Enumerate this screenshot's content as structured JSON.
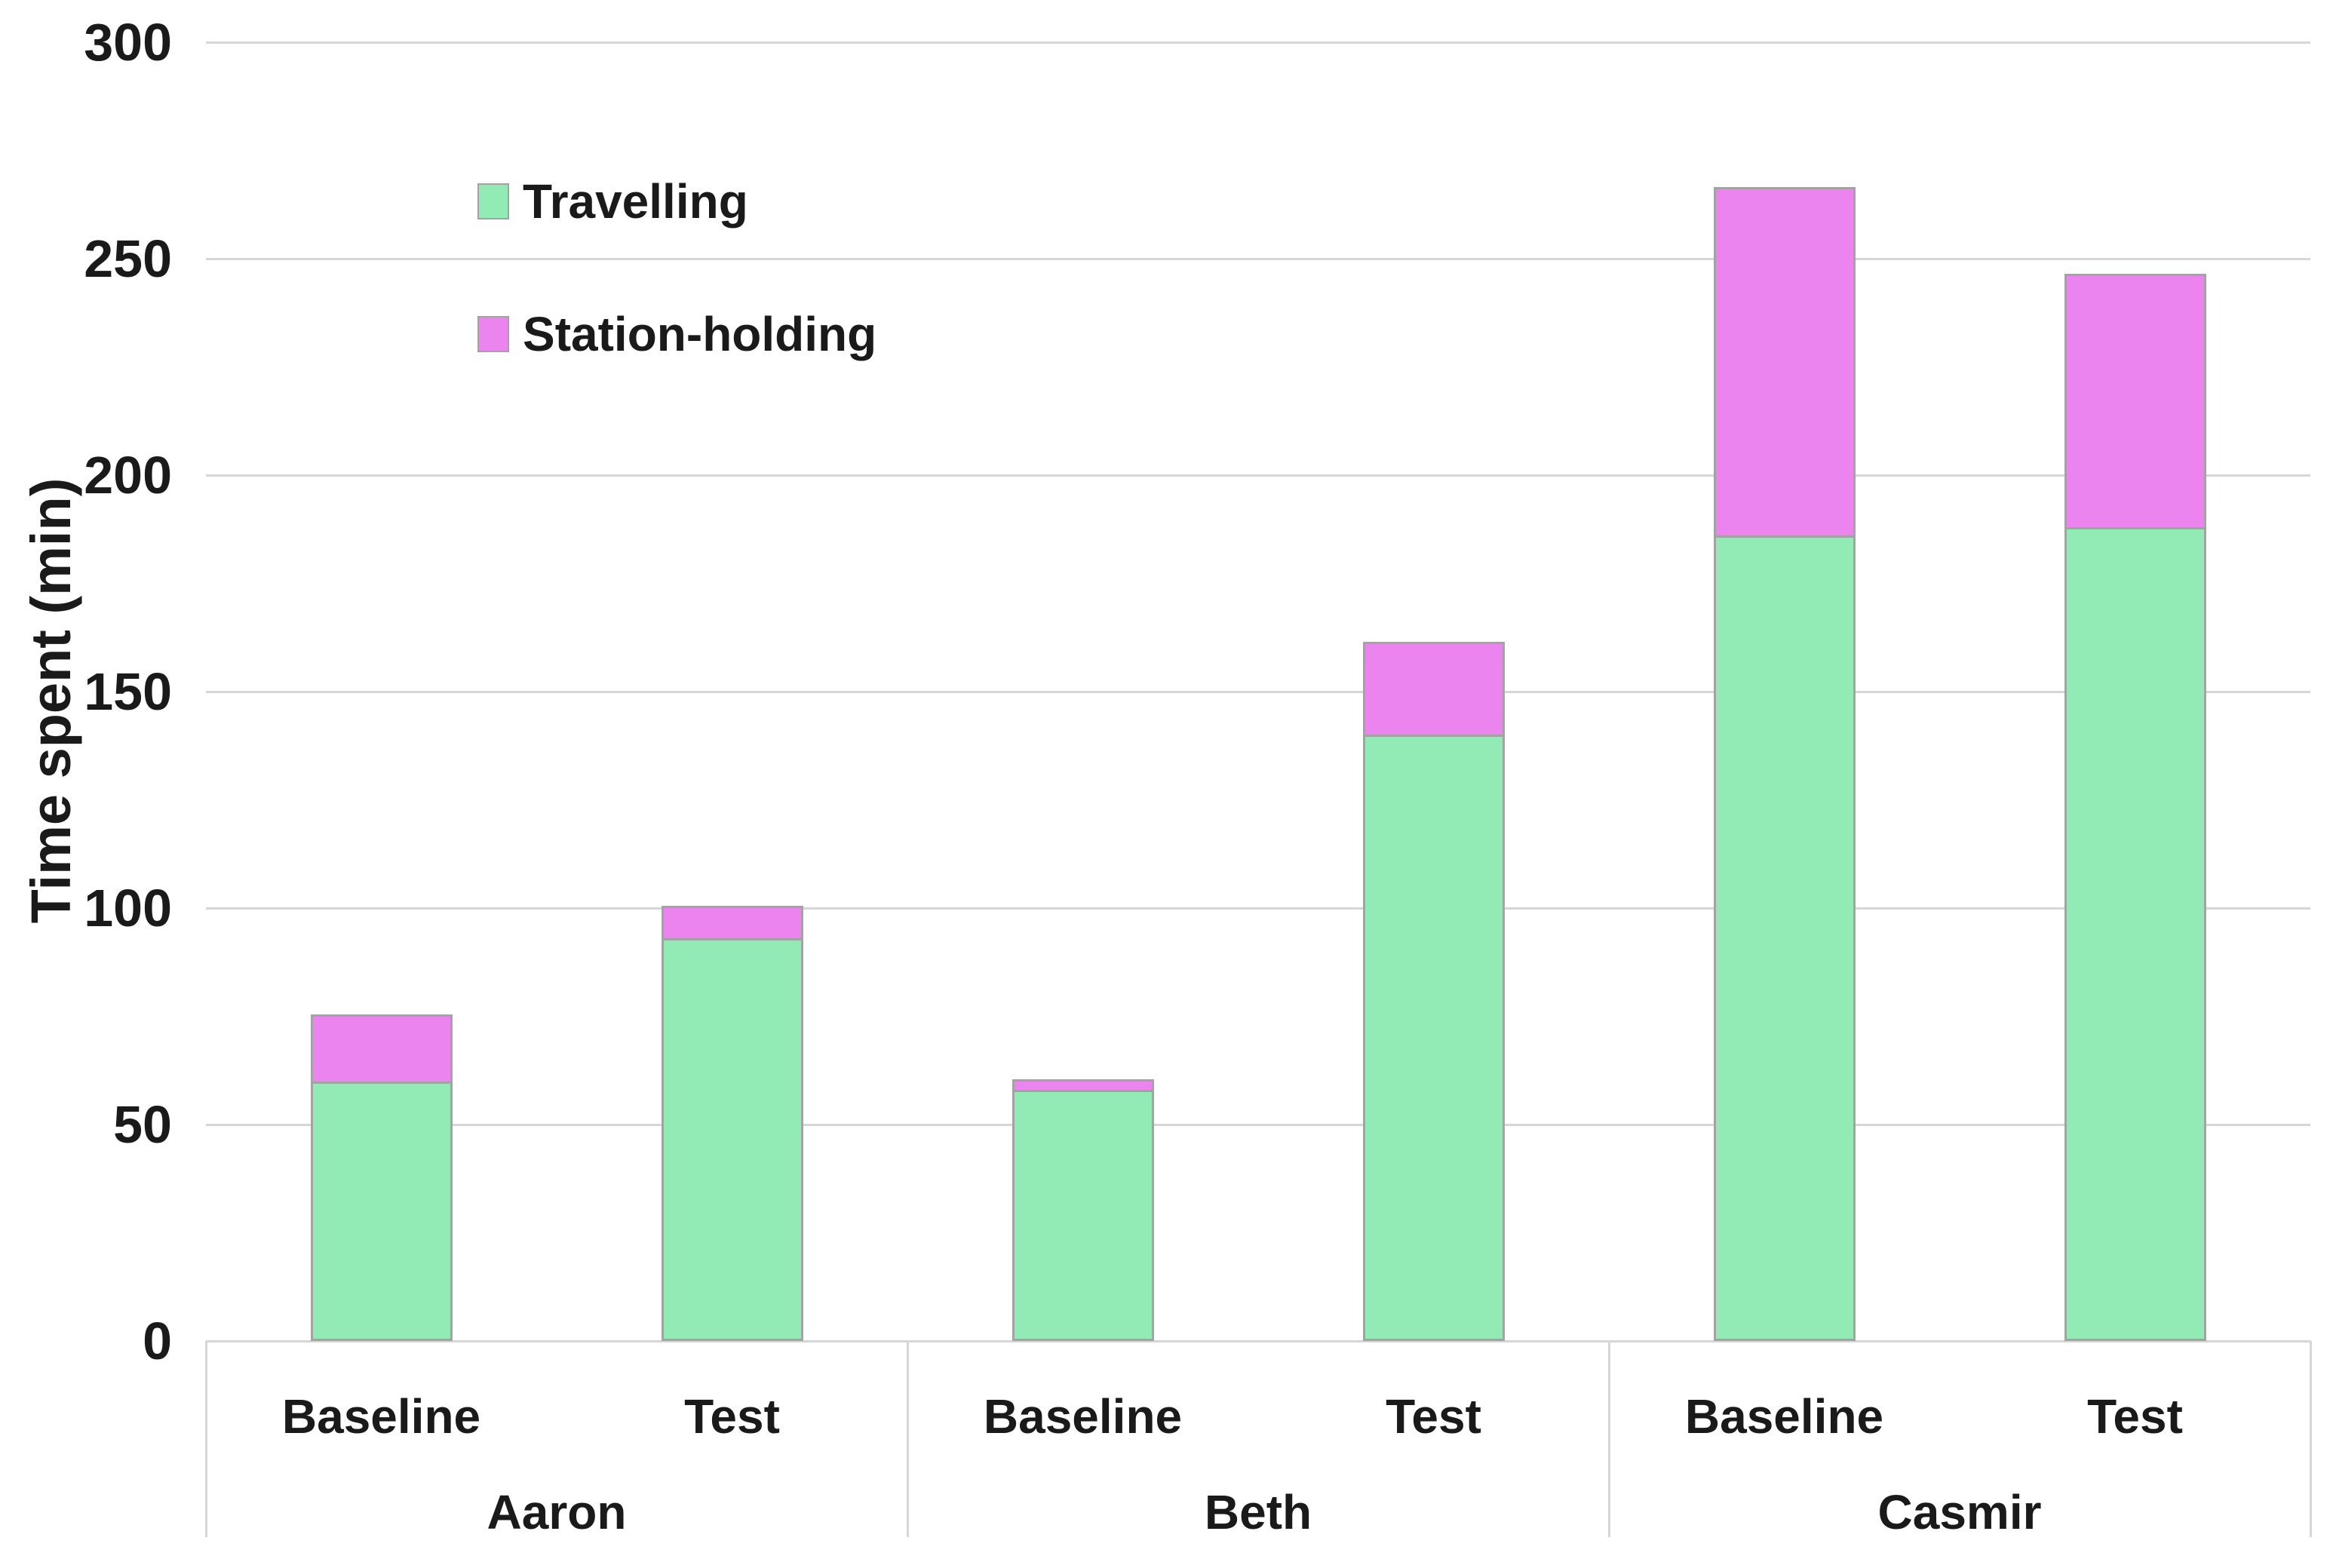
{
  "chart_data": {
    "type": "bar",
    "stacked": true,
    "title": "",
    "xlabel": "",
    "ylabel": "Time spent (min)",
    "ylim": [
      0,
      300
    ],
    "ytick_interval": 50,
    "yticks": [
      0,
      50,
      100,
      150,
      200,
      250,
      300
    ],
    "ytick_labels": [
      "0",
      "50",
      "100",
      "150",
      "200",
      "250",
      "300"
    ],
    "grid": "horizontal",
    "legend_position": "upper-left-inside",
    "groups": [
      "Aaron",
      "Beth",
      "Casmir"
    ],
    "conditions": [
      "Baseline",
      "Test"
    ],
    "categories": [
      "Aaron Baseline",
      "Aaron Test",
      "Beth Baseline",
      "Beth Test",
      "Casmir Baseline",
      "Casmir Test"
    ],
    "series": [
      {
        "name": "Travelling",
        "color": "#92ebb5",
        "values": [
          60,
          93,
          58,
          140,
          186,
          188
        ]
      },
      {
        "name": "Station-holding",
        "color": "#eb84ee",
        "values": [
          16,
          8,
          3,
          22,
          81,
          59
        ]
      }
    ],
    "stack_totals": [
      76,
      101,
      61,
      162,
      267,
      247
    ],
    "colors": {
      "travelling": "#92ebb5",
      "station_holding": "#eb84ee",
      "bar_border": "#a3a3a3",
      "gridline": "#d6d6d6",
      "text": "#1a1a1a",
      "background": "#ffffff"
    }
  },
  "legend": {
    "items": [
      {
        "label": "Travelling"
      },
      {
        "label": "Station-holding"
      }
    ]
  }
}
